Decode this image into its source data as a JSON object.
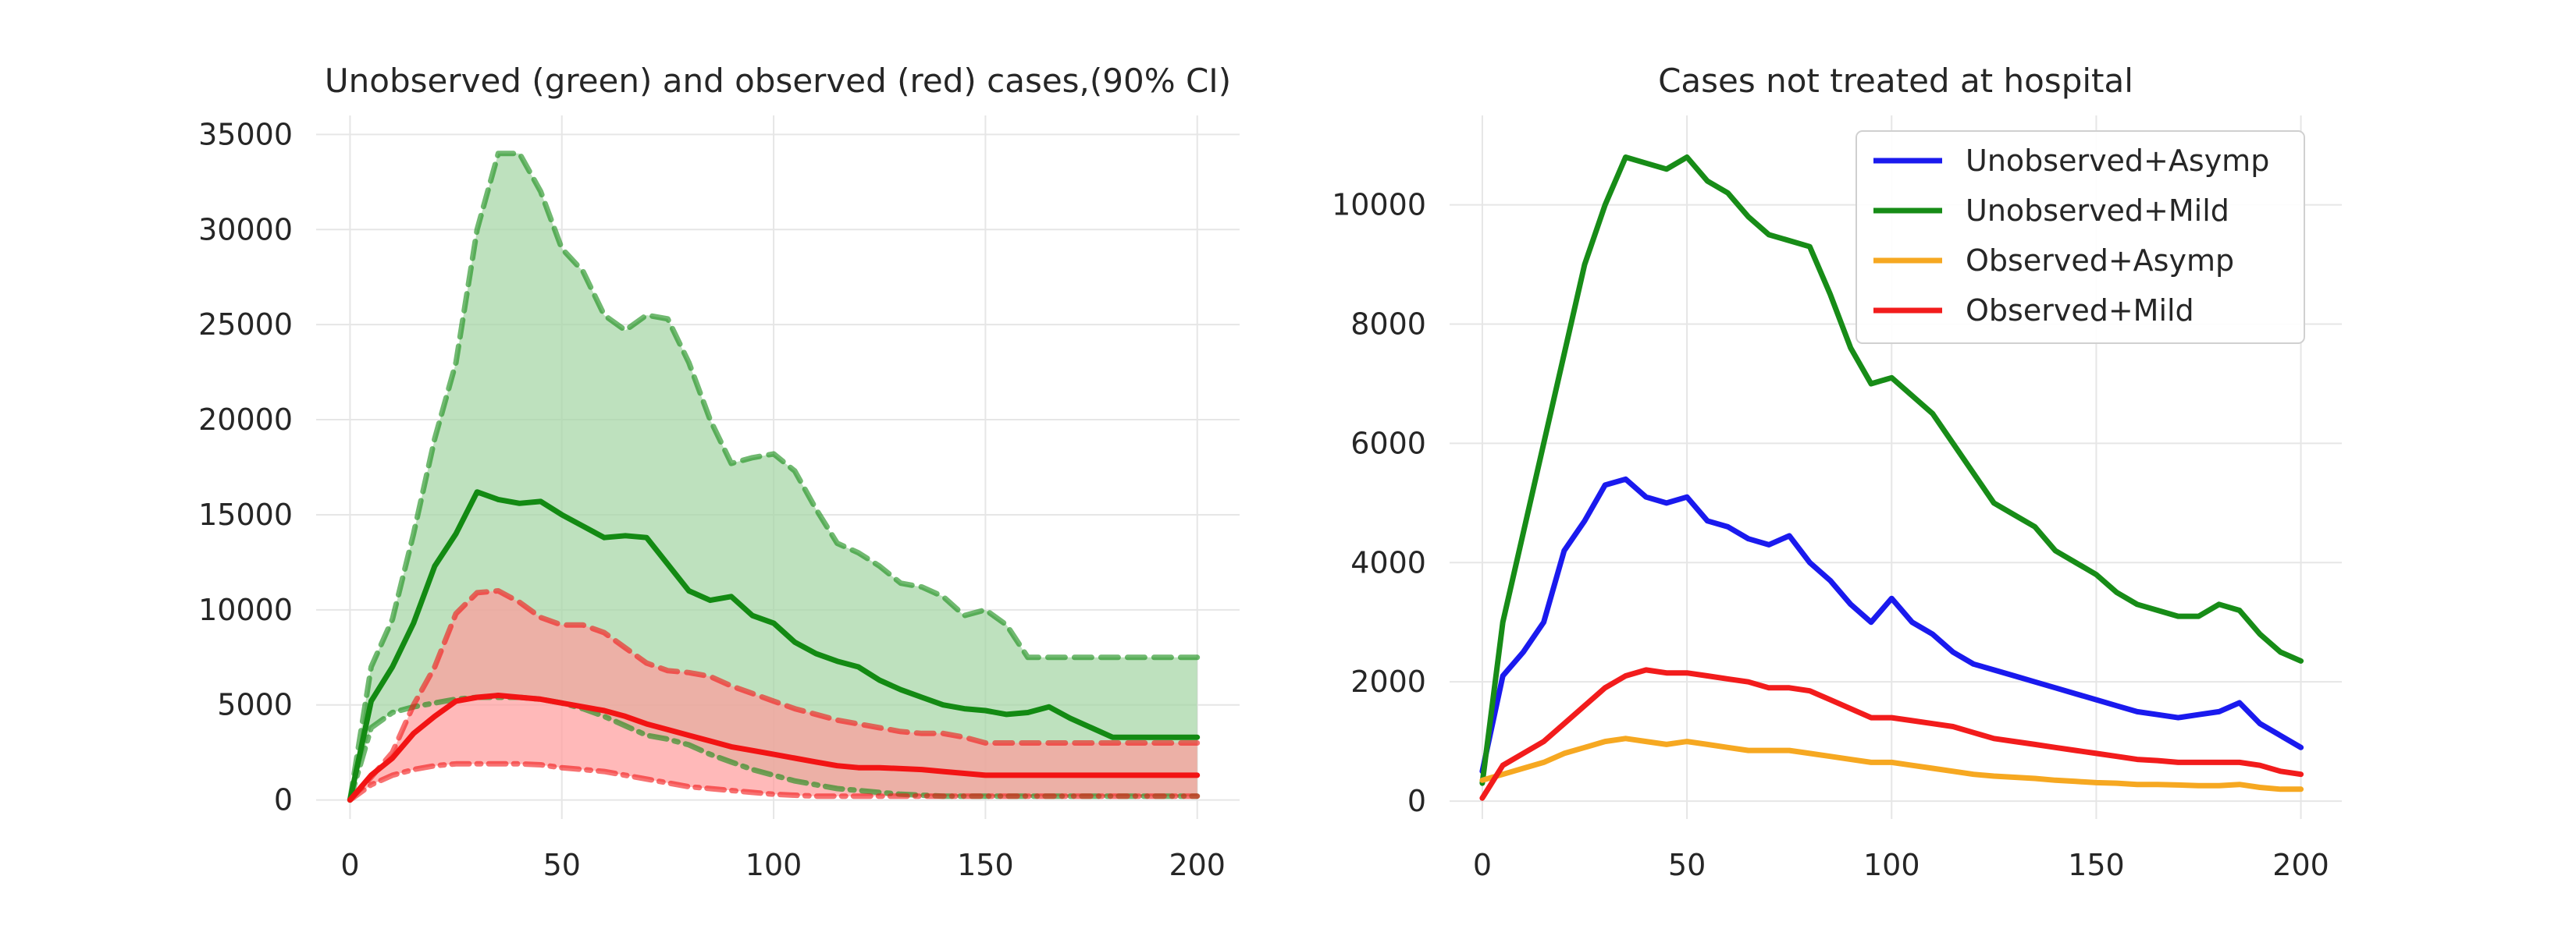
{
  "chart_data": [
    {
      "type": "line",
      "title": "Unobserved (green) and observed (red) cases,(90% CI)",
      "xlabel": "",
      "ylabel": "",
      "xlim": [
        -8,
        210
      ],
      "ylim": [
        -1000,
        36000
      ],
      "xticks": [
        0,
        50,
        100,
        150,
        200
      ],
      "yticks": [
        0,
        5000,
        10000,
        15000,
        20000,
        25000,
        30000,
        35000
      ],
      "grid": true,
      "colors": {
        "green": "#138a13",
        "green_fill": "#a3d4a3",
        "red": "#f21414",
        "red_fill": "#ff9b9b"
      },
      "x": [
        0,
        5,
        10,
        15,
        20,
        25,
        30,
        35,
        40,
        45,
        50,
        55,
        60,
        65,
        70,
        75,
        80,
        85,
        90,
        95,
        100,
        105,
        110,
        115,
        120,
        125,
        130,
        135,
        140,
        145,
        150,
        155,
        160,
        165,
        170,
        175,
        180,
        185,
        190,
        195,
        200
      ],
      "series": [
        {
          "role": "green-upper",
          "values": [
            0,
            7000,
            9500,
            14000,
            19000,
            23000,
            30000,
            34000,
            34000,
            32000,
            29000,
            27800,
            25500,
            24700,
            25500,
            25300,
            23000,
            20000,
            17700,
            18000,
            18200,
            17300,
            15300,
            13500,
            13000,
            12300,
            11400,
            11200,
            10700,
            9700,
            10000,
            9200,
            7500,
            7500,
            7500,
            7500,
            7500,
            7500,
            7500,
            7500,
            7500
          ]
        },
        {
          "role": "green-mean",
          "values": [
            0,
            5200,
            7000,
            9300,
            12300,
            14000,
            16200,
            15800,
            15600,
            15700,
            15000,
            14400,
            13800,
            13900,
            13800,
            12400,
            11000,
            10500,
            10700,
            9700,
            9300,
            8300,
            7700,
            7300,
            7000,
            6300,
            5800,
            5400,
            5000,
            4800,
            4700,
            4500,
            4600,
            4900,
            4300,
            3800,
            3300,
            3300,
            3300,
            3300,
            3300
          ]
        },
        {
          "role": "green-lower",
          "values": [
            0,
            3800,
            4600,
            4900,
            5100,
            5300,
            5400,
            5400,
            5400,
            5300,
            5100,
            4800,
            4400,
            3900,
            3400,
            3200,
            2900,
            2400,
            2000,
            1600,
            1300,
            1000,
            800,
            600,
            500,
            400,
            300,
            250,
            200,
            200,
            200,
            200,
            200,
            200,
            200,
            200,
            200,
            200,
            200,
            200,
            200
          ]
        },
        {
          "role": "red-upper",
          "values": [
            0,
            1200,
            2500,
            5000,
            7000,
            9800,
            10900,
            11000,
            10400,
            9600,
            9200,
            9200,
            8800,
            8000,
            7200,
            6800,
            6700,
            6500,
            6000,
            5600,
            5200,
            4800,
            4500,
            4200,
            4000,
            3800,
            3600,
            3500,
            3500,
            3300,
            3000,
            3000,
            3000,
            3000,
            3000,
            3000,
            3000,
            3000,
            3000,
            3000,
            3000
          ]
        },
        {
          "role": "red-mean",
          "values": [
            0,
            1300,
            2200,
            3500,
            4400,
            5200,
            5400,
            5500,
            5400,
            5300,
            5100,
            4900,
            4700,
            4400,
            4000,
            3700,
            3400,
            3100,
            2800,
            2600,
            2400,
            2200,
            2000,
            1800,
            1700,
            1700,
            1650,
            1600,
            1500,
            1400,
            1300,
            1300,
            1300,
            1300,
            1300,
            1300,
            1300,
            1300,
            1300,
            1300,
            1300
          ]
        },
        {
          "role": "red-lower",
          "values": [
            0,
            800,
            1300,
            1600,
            1800,
            1900,
            1900,
            1900,
            1900,
            1850,
            1700,
            1600,
            1500,
            1300,
            1100,
            900,
            700,
            600,
            500,
            400,
            300,
            250,
            200,
            200,
            200,
            200,
            200,
            200,
            200,
            200,
            200,
            200,
            200,
            200,
            200,
            200,
            200,
            200,
            200,
            200,
            200
          ]
        }
      ]
    },
    {
      "type": "line",
      "title": "Cases not treated at hospital",
      "xlabel": "",
      "ylabel": "",
      "xlim": [
        -8,
        210
      ],
      "ylim": [
        -300,
        11500
      ],
      "xticks": [
        0,
        50,
        100,
        150,
        200
      ],
      "yticks": [
        0,
        2000,
        4000,
        6000,
        8000,
        10000
      ],
      "grid": true,
      "legend": "top-right",
      "x": [
        0,
        5,
        10,
        15,
        20,
        25,
        30,
        35,
        40,
        45,
        50,
        55,
        60,
        65,
        70,
        75,
        80,
        85,
        90,
        95,
        100,
        105,
        110,
        115,
        120,
        125,
        130,
        135,
        140,
        145,
        150,
        155,
        160,
        165,
        170,
        175,
        180,
        185,
        190,
        195,
        200
      ],
      "series": [
        {
          "name": "Unobserved+Asymp",
          "color": "#1a1aee",
          "values": [
            500,
            2100,
            2500,
            3000,
            4200,
            4700,
            5300,
            5400,
            5100,
            5000,
            5100,
            4700,
            4600,
            4400,
            4300,
            4450,
            4000,
            3700,
            3300,
            3000,
            3400,
            3000,
            2800,
            2500,
            2300,
            2200,
            2100,
            2000,
            1900,
            1800,
            1700,
            1600,
            1500,
            1450,
            1400,
            1450,
            1500,
            1650,
            1300,
            1100,
            900
          ]
        },
        {
          "name": "Unobserved+Mild",
          "color": "#178c17",
          "values": [
            300,
            3000,
            4500,
            6000,
            7500,
            9000,
            10000,
            10800,
            10700,
            10600,
            10800,
            10400,
            10200,
            9800,
            9500,
            9400,
            9300,
            8500,
            7600,
            7000,
            7100,
            6800,
            6500,
            6000,
            5500,
            5000,
            4800,
            4600,
            4200,
            4000,
            3800,
            3500,
            3300,
            3200,
            3100,
            3100,
            3300,
            3200,
            2800,
            2500,
            2350
          ]
        },
        {
          "name": "Observed+Asymp",
          "color": "#f6a821",
          "values": [
            350,
            450,
            550,
            650,
            800,
            900,
            1000,
            1050,
            1000,
            950,
            1000,
            950,
            900,
            850,
            850,
            850,
            800,
            750,
            700,
            650,
            650,
            600,
            550,
            500,
            450,
            420,
            400,
            380,
            350,
            330,
            310,
            300,
            280,
            280,
            270,
            260,
            260,
            280,
            230,
            200,
            200
          ]
        },
        {
          "name": "Observed+Mild",
          "color": "#f21c1c",
          "values": [
            50,
            600,
            800,
            1000,
            1300,
            1600,
            1900,
            2100,
            2200,
            2150,
            2150,
            2100,
            2050,
            2000,
            1900,
            1900,
            1850,
            1700,
            1550,
            1400,
            1400,
            1350,
            1300,
            1250,
            1150,
            1050,
            1000,
            950,
            900,
            850,
            800,
            750,
            700,
            680,
            650,
            650,
            650,
            650,
            600,
            500,
            450
          ]
        }
      ]
    }
  ]
}
